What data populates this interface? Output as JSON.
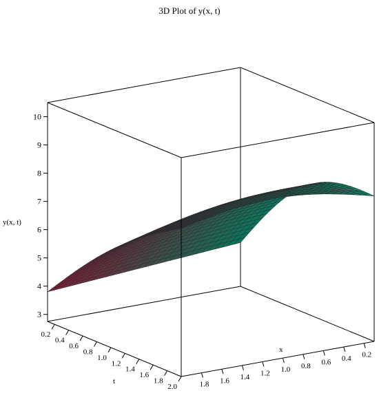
{
  "chart_data": {
    "type": "surface3d",
    "title": "3D Plot of y(x, t)",
    "zlabel": "y(x, t)",
    "xlabel": "x",
    "tlabel": "t",
    "z_ticks": [
      {
        "value": 3,
        "label": "3"
      },
      {
        "value": 4,
        "label": "4"
      },
      {
        "value": 5,
        "label": "5"
      },
      {
        "value": 6,
        "label": "6"
      },
      {
        "value": 7,
        "label": "7"
      },
      {
        "value": 8,
        "label": "8"
      },
      {
        "value": 9,
        "label": "9"
      },
      {
        "value": 10,
        "label": "10"
      }
    ],
    "t_ticks": [
      {
        "value": 0.2,
        "label": "0.2"
      },
      {
        "value": 0.4,
        "label": "0.4"
      },
      {
        "value": 0.6,
        "label": "0.6"
      },
      {
        "value": 0.8,
        "label": "0.8"
      },
      {
        "value": 1.0,
        "label": "1.0"
      },
      {
        "value": 1.2,
        "label": "1.2"
      },
      {
        "value": 1.4,
        "label": "1.4"
      },
      {
        "value": 1.6,
        "label": "1.6"
      },
      {
        "value": 1.8,
        "label": "1.8"
      },
      {
        "value": 2.0,
        "label": "2.0"
      }
    ],
    "x_ticks": [
      {
        "value": 1.8,
        "label": "1.8"
      },
      {
        "value": 1.6,
        "label": "1.6"
      },
      {
        "value": 1.4,
        "label": "1.4"
      },
      {
        "value": 1.2,
        "label": "1.2"
      },
      {
        "value": 1.0,
        "label": "1.0"
      },
      {
        "value": 0.8,
        "label": "0.8"
      },
      {
        "value": 0.6,
        "label": "0.6"
      },
      {
        "value": 0.4,
        "label": "0.4"
      },
      {
        "value": 0.2,
        "label": "0.2"
      }
    ],
    "x_range": [
      0.1,
      2.0
    ],
    "t_range": [
      0.1,
      2.0
    ],
    "z_range": [
      2.75,
      10.5
    ],
    "surface_corners": [
      {
        "x": 2.0,
        "t": 0.1,
        "y": 3.8
      },
      {
        "x": 2.0,
        "t": 2.0,
        "y": 8.0
      },
      {
        "x": 0.1,
        "t": 2.0,
        "y": 7.9
      },
      {
        "x": 0.1,
        "t": 0.1,
        "y": 4.3
      }
    ],
    "colors": {
      "low": "#b01f3f",
      "mid": "#2e2e40",
      "high": "#0f8a6c",
      "grid": "#2a2a2a"
    }
  }
}
